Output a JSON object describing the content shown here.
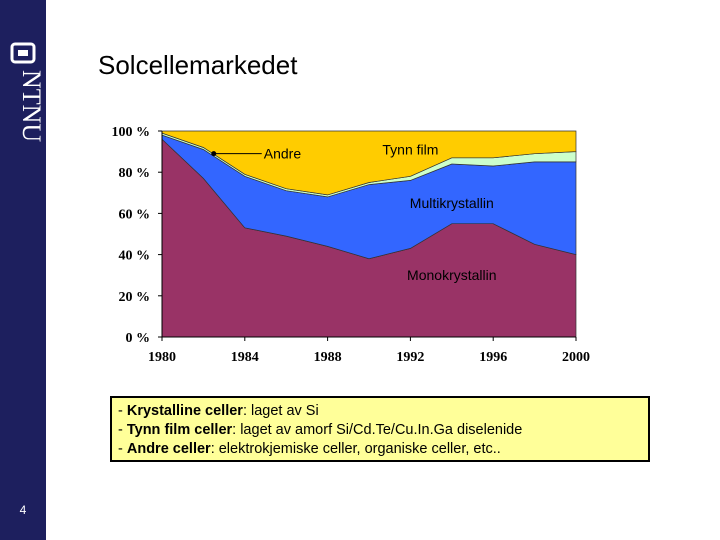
{
  "slide": {
    "title": "Solcellemarkedet",
    "page_number": "4",
    "logo_text": "NTNU"
  },
  "chart_data": {
    "type": "area",
    "stacked": true,
    "normalized": true,
    "x": [
      1980,
      1982,
      1984,
      1986,
      1988,
      1990,
      1992,
      1994,
      1996,
      1998,
      2000
    ],
    "xticks": [
      "1980",
      "1984",
      "1988",
      "1992",
      "1996",
      "2000"
    ],
    "yticks": [
      "0 %",
      "20 %",
      "40 %",
      "60 %",
      "80 %",
      "100 %"
    ],
    "xlim": [
      1980,
      2000
    ],
    "ylim": [
      0,
      100
    ],
    "series": [
      {
        "name": "Monokrystallin",
        "color": "#993366",
        "values": [
          96,
          77,
          53,
          49,
          44,
          38,
          43,
          55,
          55,
          45,
          40
        ]
      },
      {
        "name": "Multikrystallin",
        "color": "#3366ff",
        "values": [
          2,
          14,
          25,
          22,
          24,
          36,
          33,
          29,
          28,
          40,
          45
        ]
      },
      {
        "name": "Tynn film",
        "color": "#ccffcc",
        "values": [
          1,
          1,
          1,
          1,
          1,
          1,
          2,
          3,
          4,
          4,
          5
        ]
      },
      {
        "name": "Andre",
        "color": "#ffcc00",
        "values": [
          1,
          8,
          21,
          28,
          31,
          25,
          22,
          13,
          13,
          11,
          10
        ]
      }
    ],
    "annotations": [
      {
        "text": "Andre",
        "x": 1982.5,
        "y": 89
      },
      {
        "text": "Tynn film",
        "x": 1992,
        "y": 91
      },
      {
        "text": "Multikrystallin",
        "x": 1994,
        "y": 65
      },
      {
        "text": "Monokrystallin",
        "x": 1994,
        "y": 30
      }
    ],
    "grid": false
  },
  "notes": [
    {
      "prefix": "- ",
      "term": "Krystalline celler",
      "rest": ": laget av Si"
    },
    {
      "prefix": "- ",
      "term": "Tynn film celler",
      "rest": ": laget av amorf Si/Cd.Te/Cu.In.Ga diselenide"
    },
    {
      "prefix": "- ",
      "term": "Andre celler",
      "rest": ": elektrokjemiske celler, organiske celler, etc.."
    }
  ]
}
